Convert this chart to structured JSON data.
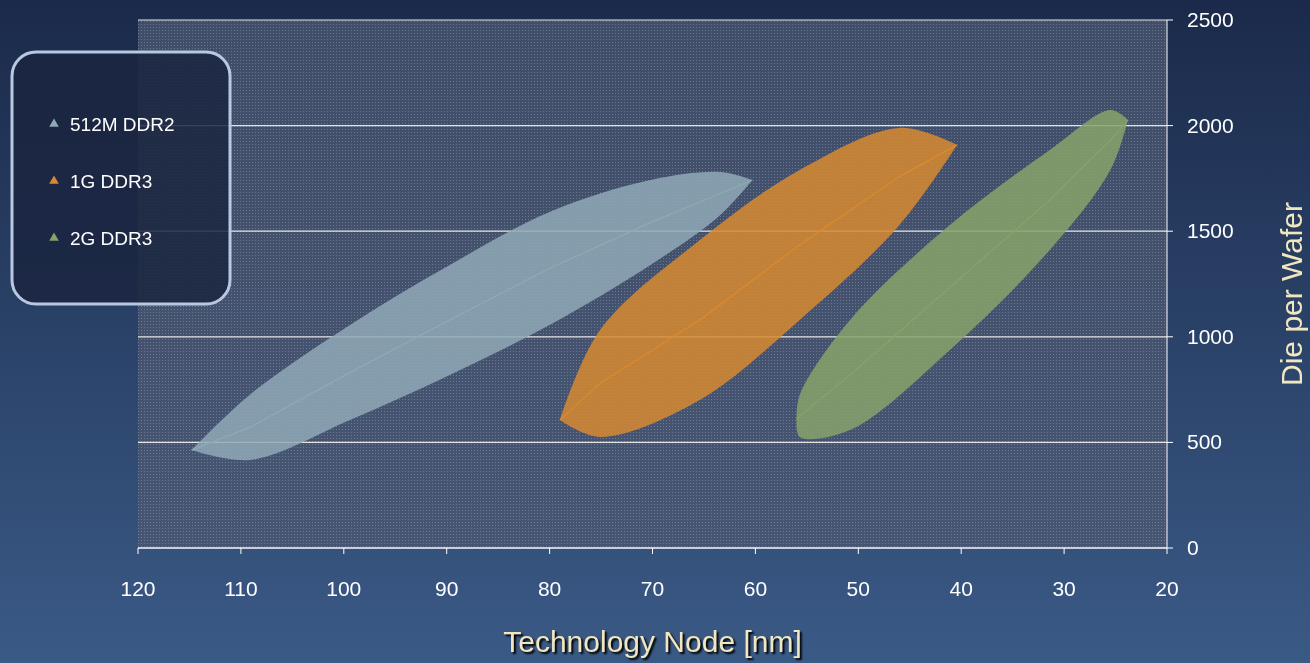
{
  "chart_data": {
    "type": "line",
    "xlabel": "Technology Node [nm]",
    "ylabel": "Die per Wafer",
    "xlim": [
      120,
      20
    ],
    "xticks": [
      120,
      110,
      100,
      90,
      80,
      70,
      60,
      50,
      40,
      30,
      20
    ],
    "ylim": [
      0,
      2500
    ],
    "yticks": [
      0,
      500,
      1000,
      1500,
      2000,
      2500
    ],
    "grid": "y",
    "legend": "top left",
    "series": [
      {
        "name": "512M DDR2",
        "color": "#8fa9b6",
        "x": [
          114.8,
          109.1,
          99.4,
          89.7,
          80,
          70.2,
          63.4,
          60.3
        ],
        "values": [
          464,
          572,
          831,
          1080,
          1324,
          1541,
          1679,
          1742
        ],
        "lower": [
          464,
          417,
          606,
          819,
          1056,
          1340,
          1577,
          1742
        ],
        "upper": [
          464,
          727,
          1056,
          1340,
          1591,
          1742,
          1780,
          1742
        ]
      },
      {
        "name": "1G DDR3",
        "color": "#d88a30",
        "x": [
          79,
          75.1,
          65.4,
          55.7,
          46,
          40.4
        ],
        "values": [
          606,
          779,
          1080,
          1435,
          1759,
          1908
        ],
        "lower": [
          606,
          526,
          701,
          1080,
          1529,
          1908
        ],
        "upper": [
          606,
          1032,
          1458,
          1790,
          1989,
          1908
        ]
      },
      {
        "name": "2G DDR3",
        "color": "#87a26a",
        "x": [
          56,
          55.7,
          50.8,
          41.1,
          31.4,
          25.5,
          23.8
        ],
        "values": [
          606,
          625,
          820,
          1234,
          1648,
          1932,
          2027
        ],
        "lower": [
          606,
          526,
          559,
          938,
          1411,
          1790,
          2027
        ],
        "upper": [
          606,
          724,
          1080,
          1529,
          1884,
          2074,
          2027
        ]
      }
    ]
  }
}
